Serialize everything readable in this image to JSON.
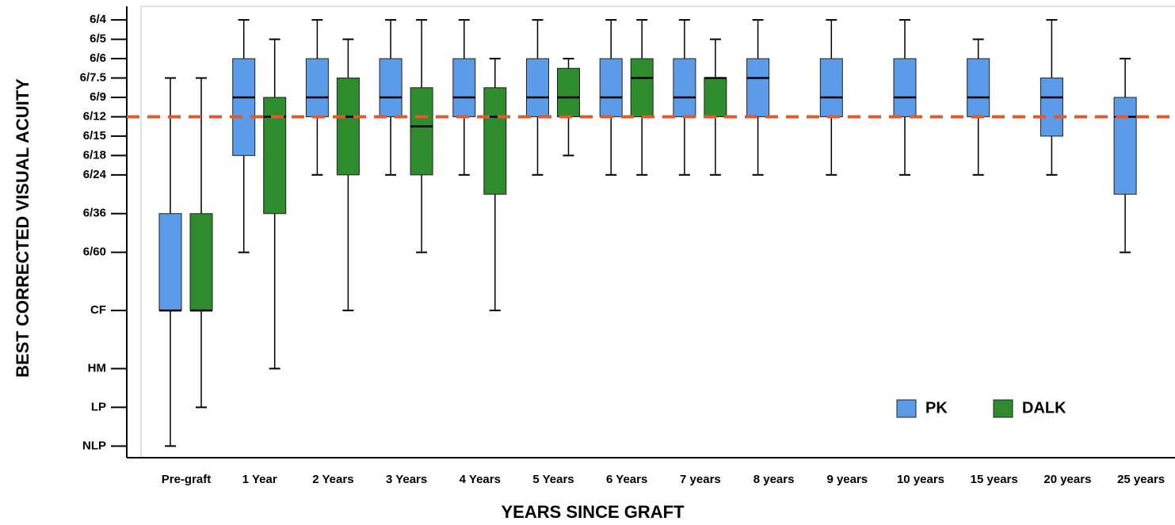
{
  "chart_data": {
    "type": "box",
    "xlabel": "YEARS SINCE GRAFT",
    "ylabel": "BEST CORRECTED VISUAL ACUITY",
    "categories": [
      "Pre-graft",
      "1 Year",
      "2 Years",
      "3 Years",
      "4 Years",
      "5 Years",
      "6 Years",
      "7 years",
      "8 years",
      "9 years",
      "10 years",
      "15 years",
      "20 years",
      "25 years"
    ],
    "ylim": [
      22.6,
      -0.7
    ],
    "yticks": [
      {
        "value": 0,
        "label": "6/4"
      },
      {
        "value": 1,
        "label": "6/5"
      },
      {
        "value": 2,
        "label": "6/6"
      },
      {
        "value": 3,
        "label": "6/7.5"
      },
      {
        "value": 4,
        "label": "6/9"
      },
      {
        "value": 5,
        "label": "6/12"
      },
      {
        "value": 6,
        "label": "6/15"
      },
      {
        "value": 7,
        "label": "6/18"
      },
      {
        "value": 8,
        "label": "6/24"
      },
      {
        "value": 10,
        "label": "6/36"
      },
      {
        "value": 12,
        "label": "6/60"
      },
      {
        "value": 15,
        "label": "CF"
      },
      {
        "value": 18,
        "label": "HM"
      },
      {
        "value": 20,
        "label": "LP"
      },
      {
        "value": 22,
        "label": "NLP"
      }
    ],
    "reference_line": {
      "value": 5,
      "color": "#e05a2b"
    },
    "legend": "lower right",
    "series": [
      {
        "name": "PK",
        "color": "#5b9be8",
        "min": [
          3,
          0,
          0,
          0,
          0,
          0,
          0,
          0,
          0,
          0,
          0,
          1,
          0,
          2
        ],
        "q1": [
          10,
          2,
          2,
          2,
          2,
          2,
          2,
          2,
          2,
          2,
          2,
          2,
          3,
          4
        ],
        "median": [
          15,
          4,
          4,
          4,
          4,
          4,
          4,
          4,
          3,
          4,
          4,
          4,
          4,
          5
        ],
        "q3": [
          15,
          7,
          5,
          5,
          5,
          5,
          5,
          5,
          5,
          5,
          5,
          5,
          6,
          9
        ],
        "max": [
          22,
          12,
          8,
          8,
          8,
          8,
          8,
          8,
          8,
          8,
          8,
          8,
          8,
          12
        ]
      },
      {
        "name": "DALK",
        "color": "#2e8b2e",
        "min": [
          3,
          1,
          1,
          0,
          2,
          2,
          0,
          1,
          null,
          null,
          null,
          null,
          null,
          null
        ],
        "q1": [
          10,
          4,
          3,
          3.5,
          3.5,
          2.5,
          2,
          3,
          null,
          null,
          null,
          null,
          null,
          null
        ],
        "median": [
          15,
          5,
          5,
          5.5,
          5,
          4,
          3,
          3,
          null,
          null,
          null,
          null,
          null,
          null
        ],
        "q3": [
          15,
          10,
          8,
          8,
          9,
          5,
          5,
          5,
          null,
          null,
          null,
          null,
          null,
          null
        ],
        "max": [
          20,
          18,
          15,
          12,
          15,
          7,
          8,
          8,
          null,
          null,
          null,
          null,
          null,
          null
        ]
      }
    ]
  }
}
